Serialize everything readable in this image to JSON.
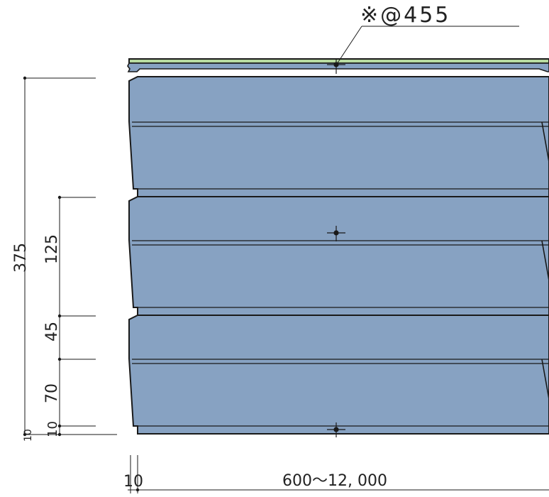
{
  "note": {
    "label": "※@455"
  },
  "dimensions": {
    "vertical": {
      "total": "375",
      "upper": "125",
      "middle": "45",
      "lower": "70",
      "bottom_a": "10",
      "bottom_b": "10"
    },
    "horizontal": {
      "offset": "10",
      "length": "600〜12, 000"
    }
  },
  "colors": {
    "panel_fill": "#87a2c2",
    "cap_fill": "#b7dba0",
    "line": "#1a1a1a",
    "background": "#ffffff"
  },
  "icons": {
    "fastener": "fastener-cross-icon"
  }
}
